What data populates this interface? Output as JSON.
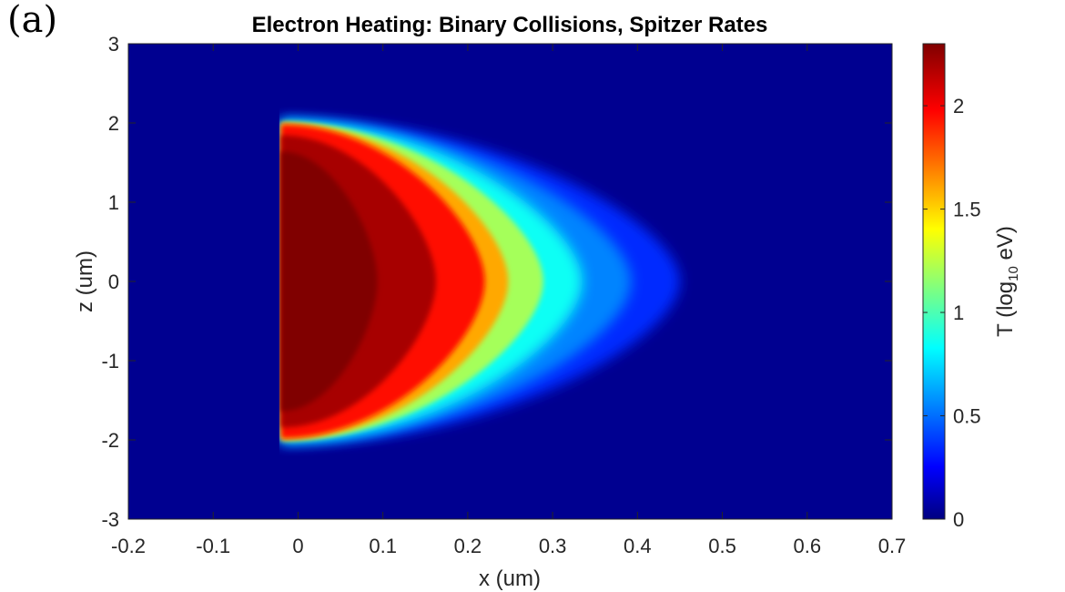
{
  "panel_label": "(a)",
  "chart_data": {
    "type": "heatmap",
    "title": "Electron Heating: Binary Collisions, Spitzer Rates",
    "xlabel": "x (um)",
    "ylabel": "z (um)",
    "colorbar_label": "T (log10 eV)",
    "colorbar_label_parts": {
      "prefix": "T (log",
      "subscript": "10",
      "suffix": " eV)"
    },
    "xlim": [
      -0.2,
      0.7
    ],
    "ylim": [
      -3,
      3
    ],
    "clim": [
      0,
      2.3
    ],
    "colormap": "jet",
    "x_ticks": [
      -0.2,
      -0.1,
      0,
      0.1,
      0.2,
      0.3,
      0.4,
      0.5,
      0.6,
      0.7
    ],
    "x_tick_labels": [
      "-0.2",
      "-0.1",
      "0",
      "0.1",
      "0.2",
      "0.3",
      "0.4",
      "0.5",
      "0.6",
      "0.7"
    ],
    "y_ticks": [
      -3,
      -2,
      -1,
      0,
      1,
      2,
      3
    ],
    "y_tick_labels": [
      "-3",
      "-2",
      "-1",
      "0",
      "1",
      "2",
      "3"
    ],
    "colorbar_ticks": [
      0,
      0.5,
      1,
      1.5,
      2
    ],
    "colorbar_tick_labels": [
      "0",
      "0.5",
      "1",
      "1.5",
      "2"
    ],
    "grid": false,
    "hot_region": {
      "left_edge_x": -0.02,
      "z_extent": [
        -2.05,
        2.05
      ],
      "core_value": 2.3,
      "front_x_at_z0": 0.22,
      "halo_x_at_z0": 0.45,
      "background_value": 0
    }
  }
}
